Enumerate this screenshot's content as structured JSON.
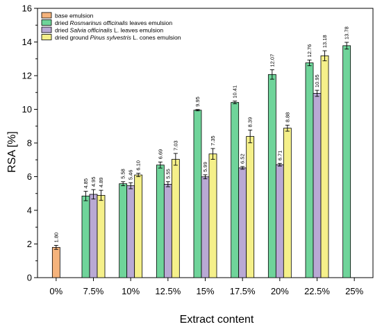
{
  "chart_data": {
    "type": "bar",
    "xlabel": "Extract content",
    "ylabel": "RSA [%]",
    "ylim": [
      0,
      16
    ],
    "yticks": [
      0,
      2,
      4,
      6,
      8,
      10,
      12,
      14,
      16
    ],
    "grid": false,
    "legend_position": "top-left",
    "categories": [
      "0%",
      "7.5%",
      "10%",
      "12.5%",
      "15%",
      "17.5%",
      "20%",
      "22.5%",
      "25%"
    ],
    "series": [
      {
        "name": "base emulsion",
        "color": "#f5b37c",
        "values": [
          1.8,
          null,
          null,
          null,
          null,
          null,
          null,
          null,
          null
        ],
        "labels": [
          "1.80",
          null,
          null,
          null,
          null,
          null,
          null,
          null,
          null
        ],
        "errors": [
          0.12,
          null,
          null,
          null,
          null,
          null,
          null,
          null,
          null
        ]
      },
      {
        "name": "dried Rosmarinus officinalis leaves emulsion",
        "name_parts": [
          "dried ",
          "Rosmarinus officinalis",
          " leaves emulsion"
        ],
        "color": "#6fd49a",
        "values": [
          null,
          4.85,
          5.58,
          6.69,
          9.95,
          10.41,
          12.07,
          12.76,
          13.78
        ],
        "labels": [
          null,
          "4.85",
          "5.58",
          "6.69",
          "9.95",
          "10.41",
          "12.07",
          "12.76",
          "13.78"
        ],
        "errors": [
          null,
          0.28,
          0.12,
          0.18,
          0.04,
          0.08,
          0.28,
          0.17,
          0.2
        ]
      },
      {
        "name": "dried Salvia officinalis L. leaves emulsion",
        "name_parts": [
          "dried ",
          "Salvia officinalis",
          " L. leaves emulsion"
        ],
        "color": "#b9a9d4",
        "values": [
          null,
          4.95,
          5.46,
          5.55,
          5.99,
          6.52,
          6.71,
          10.95,
          null
        ],
        "labels": [
          null,
          "4.95",
          "5.46",
          "5.55",
          "5.99",
          "6.52",
          "6.71",
          "10.95",
          null
        ],
        "errors": [
          null,
          0.28,
          0.18,
          0.15,
          0.12,
          0.08,
          0.08,
          0.18,
          null
        ]
      },
      {
        "name": "dried ground Pinus sylvestris L. cones emulsion",
        "name_parts": [
          "dried ground ",
          "Pinus sylvestris",
          " L. cones emulsion"
        ],
        "color": "#f5f08a",
        "values": [
          null,
          4.89,
          6.1,
          7.03,
          7.35,
          8.39,
          8.88,
          13.18,
          null
        ],
        "labels": [
          null,
          "4.89",
          "6.10",
          "7.03",
          "7.35",
          "8.39",
          "8.88",
          "13.18",
          null
        ],
        "errors": [
          null,
          0.3,
          0.1,
          0.35,
          0.32,
          0.38,
          0.18,
          0.3,
          null
        ]
      }
    ]
  }
}
